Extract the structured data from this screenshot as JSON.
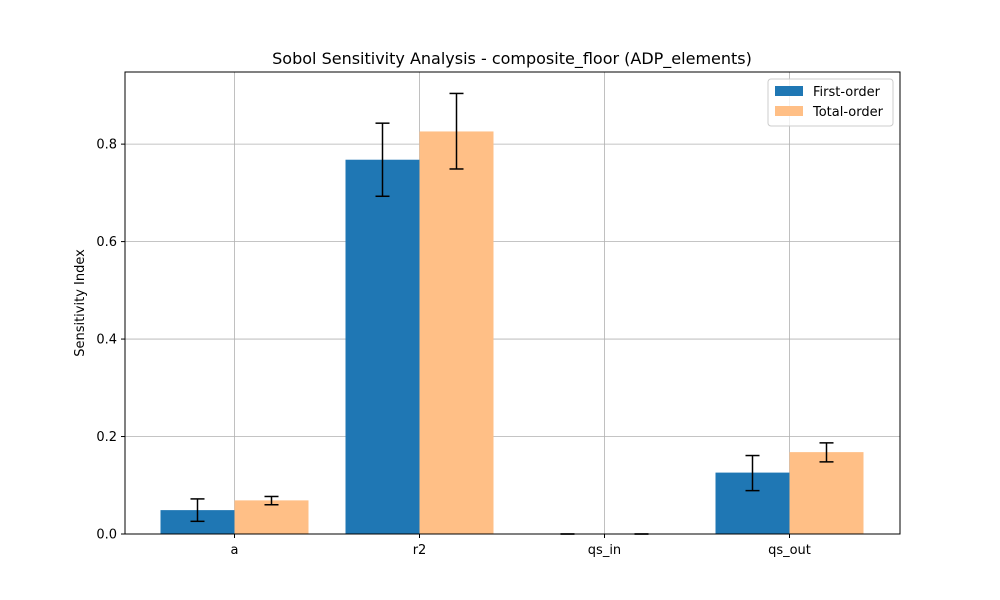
{
  "chart_data": {
    "type": "bar",
    "title": "Sobol Sensitivity Analysis - composite_floor (ADP_elements)",
    "xlabel": "",
    "ylabel": "Sensitivity Index",
    "categories": [
      "a",
      "r2",
      "qs_in",
      "qs_out"
    ],
    "ylim": [
      0,
      0.948
    ],
    "yticks": [
      "0.0",
      "0.2",
      "0.4",
      "0.6",
      "0.8"
    ],
    "grid": true,
    "legend_position": "top-right",
    "series": [
      {
        "name": "First-order",
        "color": "#1f77b4",
        "values": [
          0.049,
          0.768,
          0.0,
          0.126
        ],
        "err_low": [
          0.026,
          0.693,
          0.0,
          0.089
        ],
        "err_high": [
          0.072,
          0.843,
          0.0,
          0.161
        ]
      },
      {
        "name": "Total-order",
        "color": "#ffbf86",
        "values": [
          0.069,
          0.826,
          0.0,
          0.168
        ],
        "err_low": [
          0.06,
          0.749,
          0.0,
          0.148
        ],
        "err_high": [
          0.077,
          0.904,
          0.0,
          0.187
        ]
      }
    ]
  }
}
